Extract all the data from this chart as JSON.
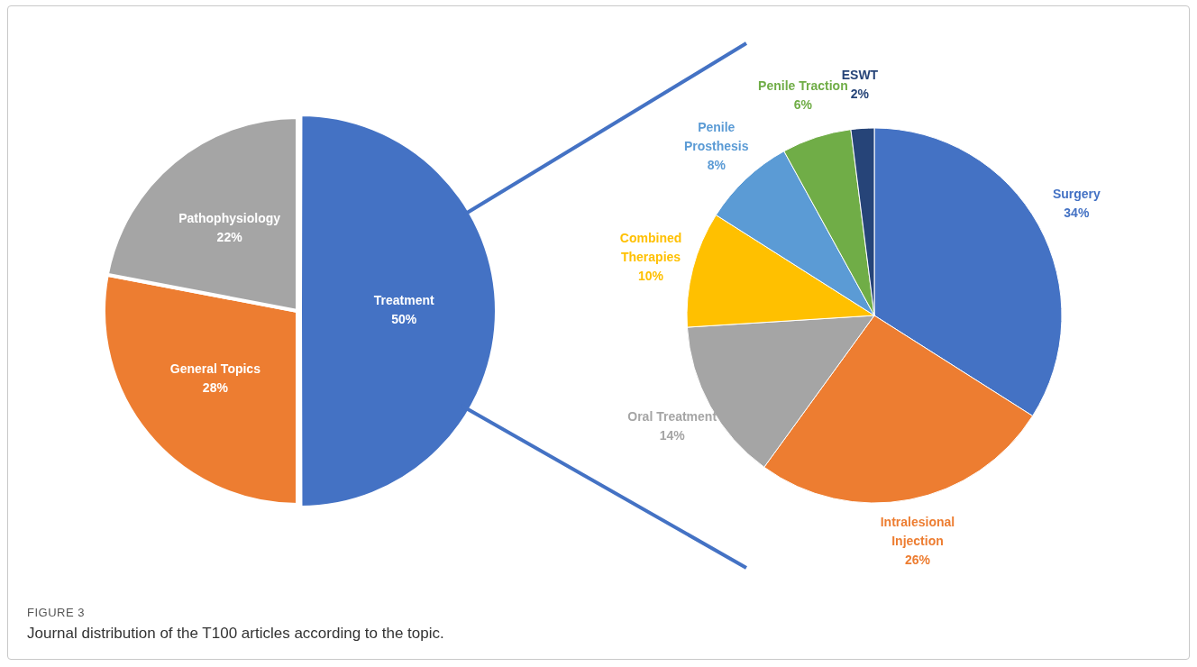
{
  "chart_data": [
    {
      "type": "pie",
      "categories": [
        "Treatment",
        "General Topics",
        "Pathophysiology"
      ],
      "values": [
        50,
        28,
        22
      ],
      "colors": [
        "#4472c4",
        "#ed7d31",
        "#a5a5a5"
      ],
      "value_labels": [
        "50%",
        "28%",
        "22%"
      ],
      "annotations": [
        "FIGURE 3",
        "Journal distribution of the T100 articles according to the topic."
      ]
    },
    {
      "type": "pie",
      "categories": [
        "Surgery",
        "Intralesional Injection",
        "Oral Treatment",
        "Combined Therapies",
        "Penile Prosthesis",
        "Penile Traction",
        "ESWT"
      ],
      "values": [
        34,
        26,
        14,
        10,
        8,
        6,
        2
      ],
      "colors": [
        "#4472c4",
        "#ed7d31",
        "#a5a5a5",
        "#ffc000",
        "#5b9bd5",
        "#70ad47",
        "#264478"
      ],
      "value_labels": [
        "34%",
        "26%",
        "14%",
        "10%",
        "8%",
        "6%",
        "2%"
      ]
    }
  ]
}
